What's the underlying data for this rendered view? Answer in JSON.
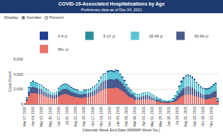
{
  "chart_data": {
    "type": "bar",
    "title": "COVID-19-Associated Hospitalizations by Age",
    "subtitle": "Preliminary data as of Dec 04, 2021",
    "annotations": [
      "Display:",
      "Number",
      "Percent"
    ],
    "x_label": "Calendar Week End Date (MMWR Week No.)",
    "y_label": "Case Count",
    "stacked": true,
    "legend": "top",
    "grid": true,
    "ylim": [
      0,
      6000
    ],
    "yticks": [
      0,
      {
        "value": 2000,
        "label": "2,000"
      },
      {
        "value": 4000,
        "label": "4,000"
      },
      {
        "value": 6000,
        "label": "6,000"
      }
    ],
    "categories": [
      "Mar 07, 2020",
      null,
      null,
      null,
      "Apr 04, 2020",
      null,
      null,
      null,
      "May 02, 2020",
      null,
      null,
      null,
      "May 30, 2020",
      null,
      null,
      null,
      "Jun 27, 2020",
      null,
      null,
      null,
      "Jul 25, 2020",
      null,
      null,
      null,
      "Aug 22, 2020",
      null,
      null,
      null,
      "Sep 19, 2020",
      null,
      null,
      null,
      "Oct 17, 2020",
      null,
      null,
      null,
      "Nov 14, 2020",
      null,
      null,
      null,
      "Dec 12, 2020",
      null,
      null,
      null,
      "Jan 09, 2021",
      null,
      null,
      null,
      "Feb 06, 2021",
      null,
      null,
      null,
      "Mar 06, 2021",
      null,
      null,
      null,
      "Apr 03, 2021",
      null,
      null,
      null,
      "May 01, 2021",
      null,
      null,
      null,
      "May 29, 2021",
      null,
      null,
      null,
      "Jun 26, 2021",
      null,
      null,
      null,
      "Jul 24, 2021",
      null,
      null,
      null,
      "Aug 21, 2021",
      null,
      null,
      null,
      "Sep 18, 2021",
      null,
      null,
      null,
      "Oct 16, 2021",
      null,
      null,
      null,
      "Nov 13, 2021",
      null,
      null,
      null
    ],
    "series": [
      {
        "name": "0-4 yr",
        "color": "#1f3f8f",
        "values": [
          4,
          30,
          60,
          70,
          70,
          70,
          80,
          70,
          60,
          60,
          50,
          50,
          40,
          40,
          40,
          40,
          60,
          60,
          70,
          70,
          70,
          60,
          60,
          50,
          50,
          50,
          40,
          40,
          50,
          50,
          50,
          50,
          60,
          60,
          70,
          80,
          90,
          100,
          110,
          110,
          110,
          110,
          110,
          110,
          110,
          100,
          90,
          80,
          70,
          60,
          50,
          40,
          50,
          40,
          40,
          50,
          50,
          50,
          50,
          50,
          40,
          40,
          30,
          20,
          20,
          20,
          20,
          20,
          20,
          20,
          40,
          40,
          80,
          100,
          130,
          140,
          150,
          160,
          150,
          150,
          140,
          120,
          110,
          100,
          80,
          90,
          90,
          80,
          100,
          110,
          110,
          40
        ]
      },
      {
        "name": "5-17 yr",
        "color": "#2b8c9c",
        "values": [
          2,
          10,
          30,
          50,
          50,
          50,
          40,
          40,
          40,
          30,
          30,
          30,
          30,
          20,
          20,
          30,
          30,
          40,
          40,
          40,
          40,
          40,
          30,
          30,
          30,
          30,
          30,
          30,
          30,
          30,
          30,
          30,
          30,
          40,
          40,
          50,
          60,
          60,
          60,
          70,
          70,
          70,
          70,
          70,
          70,
          60,
          60,
          50,
          40,
          30,
          30,
          30,
          30,
          30,
          30,
          30,
          30,
          30,
          30,
          30,
          30,
          20,
          20,
          20,
          10,
          10,
          10,
          10,
          10,
          10,
          20,
          40,
          50,
          70,
          90,
          110,
          120,
          120,
          120,
          110,
          100,
          90,
          80,
          70,
          70,
          60,
          60,
          70,
          70,
          80,
          90,
          20
        ]
      },
      {
        "name": "18-49 yr",
        "color": "#5ec4d4",
        "values": [
          33,
          200,
          510,
          660,
          680,
          660,
          640,
          590,
          570,
          510,
          460,
          420,
          400,
          350,
          350,
          400,
          480,
          550,
          590,
          620,
          590,
          550,
          510,
          460,
          440,
          420,
          400,
          400,
          420,
          420,
          440,
          460,
          510,
          550,
          620,
          700,
          810,
          900,
          920,
          970,
          990,
          990,
          970,
          1010,
          990,
          900,
          810,
          700,
          590,
          480,
          420,
          370,
          400,
          380,
          380,
          400,
          430,
          460,
          460,
          430,
          380,
          320,
          270,
          230,
          190,
          160,
          150,
          130,
          150,
          160,
          260,
          400,
          590,
          820,
          1020,
          1190,
          1290,
          1320,
          1290,
          1220,
          1120,
          990,
          890,
          790,
          730,
          690,
          690,
          730,
          790,
          890,
          960,
          260
        ]
      },
      {
        "name": "50-64 yr",
        "color": "#4a5a8c",
        "values": [
          39,
          230,
          600,
          780,
          810,
          780,
          750,
          700,
          680,
          600,
          550,
          490,
          470,
          420,
          420,
          470,
          570,
          650,
          700,
          730,
          700,
          650,
          600,
          550,
          520,
          490,
          470,
          470,
          490,
          490,
          520,
          550,
          600,
          650,
          730,
          830,
          960,
          1070,
          1090,
          1140,
          1170,
          1170,
          1140,
          1200,
          1170,
          1070,
          960,
          830,
          700,
          570,
          490,
          440,
          420,
          390,
          390,
          420,
          450,
          480,
          480,
          450,
          390,
          340,
          280,
          240,
          200,
          170,
          150,
          140,
          150,
          170,
          220,
          320,
          490,
          680,
          840,
          970,
          1050,
          1080,
          1050,
          1000,
          920,
          810,
          730,
          650,
          590,
          570,
          570,
          590,
          650,
          730,
          780,
          220
        ]
      },
      {
        "name": "65+ yr",
        "color": "#e8726a",
        "values": [
          72,
          430,
          1100,
          1440,
          1490,
          1440,
          1390,
          1300,
          1250,
          1100,
          1010,
          910,
          860,
          770,
          770,
          860,
          1060,
          1200,
          1300,
          1340,
          1300,
          1200,
          1100,
          1010,
          960,
          910,
          860,
          860,
          910,
          910,
          960,
          1010,
          1100,
          1200,
          1340,
          1540,
          1780,
          1970,
          2020,
          2110,
          2160,
          2160,
          2110,
          2210,
          2160,
          1970,
          1780,
          1540,
          1300,
          1060,
          910,
          820,
          600,
          560,
          560,
          600,
          640,
          680,
          680,
          640,
          560,
          480,
          400,
          340,
          280,
          240,
          220,
          200,
          220,
          240,
          260,
          400,
          590,
          830,
          1020,
          1190,
          1290,
          1320,
          1290,
          1220,
          1120,
          990,
          890,
          790,
          730,
          690,
          690,
          730,
          790,
          890,
          960,
          260
        ]
      }
    ]
  }
}
